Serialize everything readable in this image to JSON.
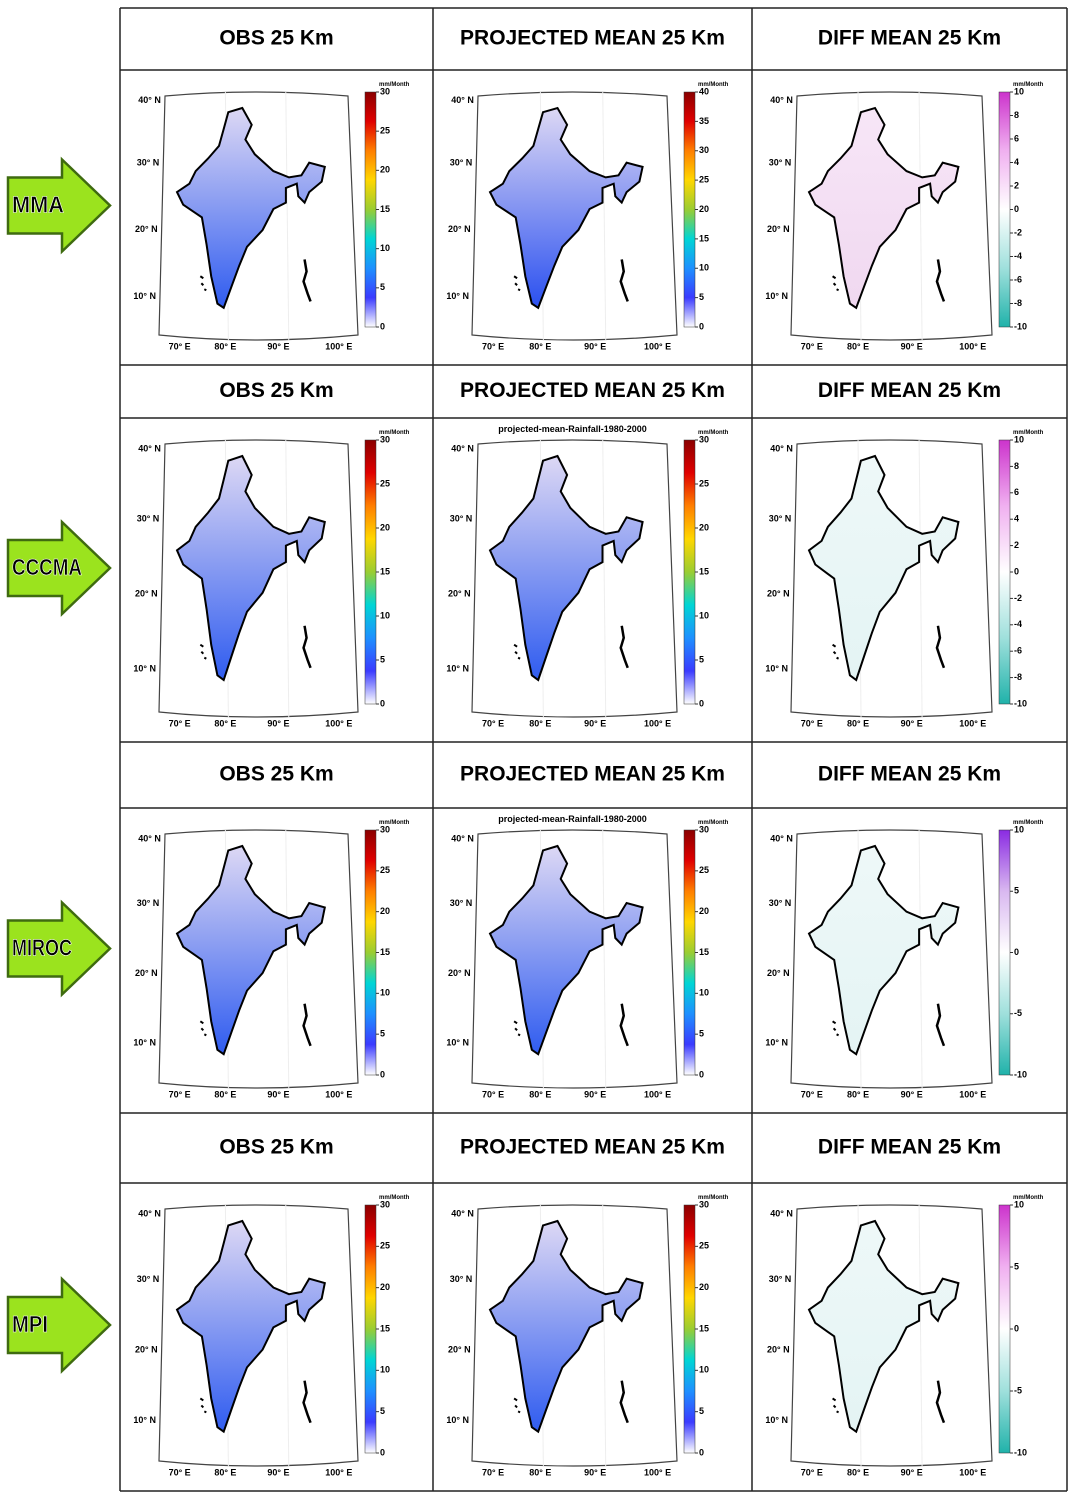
{
  "figure": {
    "map_axes": {
      "lat_labels": [
        "40° N",
        "30° N",
        "20° N",
        "10° N"
      ],
      "lon_labels": [
        "70° E",
        "80° E",
        "90° E",
        "100° E"
      ]
    },
    "rows": [
      {
        "model": "MMA",
        "panels": [
          {
            "title": "OBS 25 Km",
            "map_colors": [
              "#ddd8f4",
              "#2f5cf0"
            ],
            "colorbar": {
              "unit": "mm/Month",
              "ticks": [
                0,
                5,
                10,
                15,
                20,
                25,
                30
              ],
              "colors": [
                "#ffffff",
                "#3b3bff",
                "#1e90ff",
                "#00d5d5",
                "#9acd32",
                "#ffd700",
                "#ff7f00",
                "#e00000",
                "#8b0000"
              ]
            }
          },
          {
            "title": "PROJECTED MEAN 25 Km",
            "map_colors": [
              "#ddd8f4",
              "#2a50f0"
            ],
            "colorbar": {
              "unit": "mm/Month",
              "ticks": [
                0,
                5,
                10,
                15,
                20,
                25,
                30,
                35,
                40
              ],
              "colors": [
                "#ffffff",
                "#3b3bff",
                "#1e90ff",
                "#00d5d5",
                "#9acd32",
                "#ffd700",
                "#ff7f00",
                "#e00000",
                "#8b0000"
              ]
            }
          },
          {
            "title": "DIFF MEAN 25 Km",
            "map_colors": [
              "#f7e6f7",
              "#f0d8f0"
            ],
            "colorbar": {
              "unit": "mm/Month",
              "ticks": [
                -10,
                -8,
                -6,
                -4,
                -2,
                0,
                2,
                4,
                6,
                8,
                10
              ],
              "colors": [
                "#20b2aa",
                "#9fe0dc",
                "#ffffff",
                "#f0b0f0",
                "#cc33cc"
              ]
            }
          }
        ]
      },
      {
        "model": "CCCMA",
        "panels": [
          {
            "title": "OBS 25 Km",
            "map_colors": [
              "#ddd8f4",
              "#2f5cf0"
            ],
            "colorbar": {
              "unit": "mm/Month",
              "ticks": [
                0,
                5,
                10,
                15,
                20,
                25,
                30
              ],
              "colors": [
                "#ffffff",
                "#3b3bff",
                "#1e90ff",
                "#00d5d5",
                "#9acd32",
                "#ffd700",
                "#ff7f00",
                "#e00000",
                "#8b0000"
              ]
            }
          },
          {
            "title": "PROJECTED MEAN 25 Km",
            "subtitle": "projected-mean-Rainfall-1980-2000",
            "map_colors": [
              "#ddd8f4",
              "#2f5cf0"
            ],
            "colorbar": {
              "unit": "mm/Month",
              "ticks": [
                0,
                5,
                10,
                15,
                20,
                25,
                30
              ],
              "colors": [
                "#ffffff",
                "#3b3bff",
                "#1e90ff",
                "#00d5d5",
                "#9acd32",
                "#ffd700",
                "#ff7f00",
                "#e00000",
                "#8b0000"
              ]
            }
          },
          {
            "title": "DIFF MEAN 25 Km",
            "map_colors": [
              "#eef8f8",
              "#e4f4f4"
            ],
            "colorbar": {
              "unit": "mm/Month",
              "ticks": [
                -10,
                -8,
                -6,
                -4,
                -2,
                0,
                2,
                4,
                6,
                8,
                10
              ],
              "colors": [
                "#20b2aa",
                "#9fe0dc",
                "#ffffff",
                "#f0b0f0",
                "#cc33cc"
              ]
            }
          }
        ]
      },
      {
        "model": "MIROC",
        "panels": [
          {
            "title": "OBS 25 Km",
            "map_colors": [
              "#ddd8f4",
              "#2f5cf0"
            ],
            "colorbar": {
              "unit": "mm/Month",
              "ticks": [
                0,
                5,
                10,
                15,
                20,
                25,
                30
              ],
              "colors": [
                "#ffffff",
                "#3b3bff",
                "#1e90ff",
                "#00d5d5",
                "#9acd32",
                "#ffd700",
                "#ff7f00",
                "#e00000",
                "#8b0000"
              ]
            }
          },
          {
            "title": "PROJECTED MEAN 25 Km",
            "subtitle": "projected-mean-Rainfall-1980-2000",
            "map_colors": [
              "#ddd8f4",
              "#2f5cf0"
            ],
            "colorbar": {
              "unit": "mm/Month",
              "ticks": [
                0,
                5,
                10,
                15,
                20,
                25,
                30
              ],
              "colors": [
                "#ffffff",
                "#3b3bff",
                "#1e90ff",
                "#00d5d5",
                "#9acd32",
                "#ffd700",
                "#ff7f00",
                "#e00000",
                "#8b0000"
              ]
            }
          },
          {
            "title": "DIFF MEAN 25 Km",
            "map_colors": [
              "#eef8f8",
              "#e4f4f4"
            ],
            "colorbar": {
              "unit": "mm/Month",
              "ticks": [
                -10,
                -5,
                0,
                5,
                10
              ],
              "colors": [
                "#20b2aa",
                "#9fe0dc",
                "#ffffff",
                "#d9b8f0",
                "#8a2be2"
              ]
            }
          }
        ]
      },
      {
        "model": "MPI",
        "panels": [
          {
            "title": "OBS 25 Km",
            "map_colors": [
              "#ddd8f4",
              "#2f5cf0"
            ],
            "colorbar": {
              "unit": "mm/Month",
              "ticks": [
                0,
                5,
                10,
                15,
                20,
                25,
                30
              ],
              "colors": [
                "#ffffff",
                "#3b3bff",
                "#1e90ff",
                "#00d5d5",
                "#9acd32",
                "#ffd700",
                "#ff7f00",
                "#e00000",
                "#8b0000"
              ]
            }
          },
          {
            "title": "PROJECTED MEAN 25 Km",
            "map_colors": [
              "#ddd8f4",
              "#2f5cf0"
            ],
            "colorbar": {
              "unit": "mm/Month",
              "ticks": [
                0,
                5,
                10,
                15,
                20,
                25,
                30
              ],
              "colors": [
                "#ffffff",
                "#3b3bff",
                "#1e90ff",
                "#00d5d5",
                "#9acd32",
                "#ffd700",
                "#ff7f00",
                "#e00000",
                "#8b0000"
              ]
            }
          },
          {
            "title": "DIFF MEAN 25 Km",
            "map_colors": [
              "#eef8f8",
              "#e4f4f4"
            ],
            "colorbar": {
              "unit": "mm/Month",
              "ticks": [
                -10,
                -5,
                0,
                5,
                10
              ],
              "colors": [
                "#20b2aa",
                "#9fe0dc",
                "#ffffff",
                "#f0b0f0",
                "#cc33cc"
              ]
            }
          }
        ]
      }
    ]
  }
}
